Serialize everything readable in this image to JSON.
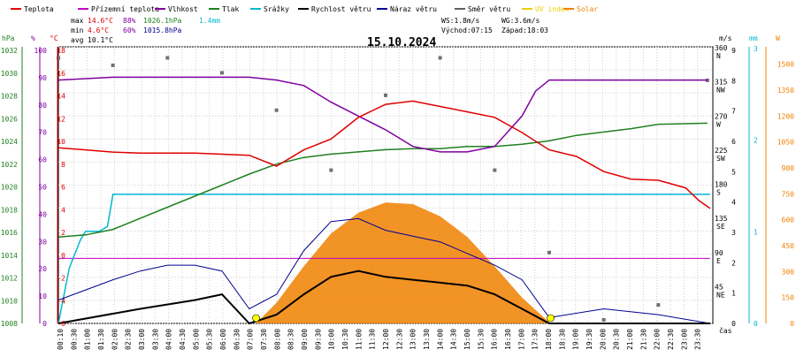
{
  "chart_data": {
    "type": "line",
    "title": "15.10.2024",
    "legend": [
      {
        "name": "Teplota",
        "color": "#e00000"
      },
      {
        "name": "Přízemní teplota",
        "color": "#c000c0"
      },
      {
        "name": "Vlhkost",
        "color": "#8000a0"
      },
      {
        "name": "Tlak",
        "color": "#208020"
      },
      {
        "name": "Srážky",
        "color": "#00b8d0"
      },
      {
        "name": "Rychlost větru",
        "color": "#000000"
      },
      {
        "name": "Náraz větru",
        "color": "#000090"
      },
      {
        "name": "Směr větru",
        "color": "#606060"
      },
      {
        "name": "UV index",
        "color": "#e8d000"
      },
      {
        "name": "Solar",
        "color": "#f08000"
      }
    ],
    "stats": {
      "max_label": "max",
      "max_temp": "14.6°C",
      "max_hum": "88%",
      "max_press": "1026.1hPa",
      "rain": "1.4mm",
      "min_label": "min",
      "min_temp": "4.6°C",
      "min_hum": "60%",
      "min_press": "1015.8hPa",
      "avg_label": "avg",
      "avg_temp": "10.1°C",
      "ws": "WS:1.8m/s",
      "wg": "WG:3.6m/s",
      "sunrise": "Východ:07:15",
      "sunset": "Západ:18:03"
    },
    "axes": {
      "hpa": {
        "unit": "hPa",
        "ticks": [
          "1032",
          "1030",
          "1028",
          "1026",
          "1024",
          "1022",
          "1020",
          "1018",
          "1016",
          "1014",
          "1012",
          "1010",
          "1008"
        ],
        "range": [
          1008,
          1033
        ]
      },
      "pct": {
        "unit": "%",
        "ticks": [
          "100",
          "90",
          "80",
          "70",
          "60",
          "50",
          "40",
          "30",
          "20",
          "10",
          "0"
        ],
        "range": [
          0,
          100
        ]
      },
      "temp": {
        "unit": "°C",
        "ticks": [
          "18",
          "16",
          "14",
          "12",
          "10",
          "8",
          "6",
          "4",
          "2",
          "0",
          "-2",
          "-4",
          "-6"
        ],
        "range": [
          -6,
          19.5
        ]
      },
      "ms": {
        "unit": "m/s",
        "ticks": [
          "9",
          "8",
          "7",
          "6",
          "5",
          "4",
          "3",
          "2",
          "1",
          "0"
        ],
        "range": [
          0,
          9.5
        ]
      },
      "dir": {
        "ticks": [
          "360",
          "315",
          "270",
          "225",
          "180",
          "135",
          "90",
          "45"
        ],
        "labels": [
          "N",
          "NW",
          "W",
          "SW",
          "S",
          "SE",
          "E",
          "NE"
        ]
      },
      "mm": {
        "unit": "mm",
        "ticks": [
          "3",
          "2",
          "1",
          "0"
        ],
        "range": [
          0,
          3
        ]
      },
      "w": {
        "unit": "W",
        "ticks": [
          "1500",
          "1350",
          "1200",
          "1050",
          "900",
          "750",
          "600",
          "450",
          "300",
          "150",
          "0"
        ],
        "range": [
          0,
          1600
        ]
      },
      "time": {
        "unit": "čas",
        "ticks": [
          "00:10",
          "00:30",
          "01:00",
          "01:30",
          "02:00",
          "02:30",
          "03:00",
          "03:30",
          "04:00",
          "04:30",
          "05:00",
          "05:30",
          "06:00",
          "06:30",
          "07:00",
          "07:30",
          "08:00",
          "08:30",
          "09:00",
          "09:30",
          "10:00",
          "10:30",
          "11:00",
          "11:30",
          "12:00",
          "12:30",
          "13:00",
          "13:30",
          "14:00",
          "14:30",
          "15:00",
          "15:30",
          "16:00",
          "16:30",
          "17:00",
          "17:30",
          "18:00",
          "18:30",
          "19:00",
          "19:30",
          "20:00",
          "20:30",
          "21:00",
          "21:30",
          "22:00",
          "22:30",
          "23:00",
          "23:30"
        ]
      }
    },
    "series": [
      {
        "name": "Teplota",
        "unit": "°C",
        "points": [
          [
            0,
            10.2
          ],
          [
            1,
            10.0
          ],
          [
            2,
            9.8
          ],
          [
            3,
            9.7
          ],
          [
            4,
            9.7
          ],
          [
            5,
            9.7
          ],
          [
            6,
            9.6
          ],
          [
            7,
            9.5
          ],
          [
            8,
            8.5
          ],
          [
            9,
            10
          ],
          [
            10,
            11
          ],
          [
            11,
            13
          ],
          [
            12,
            14.2
          ],
          [
            13,
            14.5
          ],
          [
            14,
            14
          ],
          [
            15,
            13.5
          ],
          [
            16,
            13
          ],
          [
            17,
            11.6
          ],
          [
            18,
            10
          ],
          [
            19,
            9.4
          ],
          [
            20,
            8
          ],
          [
            21,
            7.3
          ],
          [
            22,
            7.2
          ],
          [
            23,
            6.5
          ],
          [
            23.5,
            5.3
          ],
          [
            23.9,
            4.6
          ]
        ]
      },
      {
        "name": "Přízemní teplota",
        "unit": "°C",
        "points": [
          [
            0,
            0
          ],
          [
            23.9,
            0
          ]
        ]
      },
      {
        "name": "Vlhkost",
        "unit": "%",
        "points": [
          [
            0,
            88
          ],
          [
            2,
            89
          ],
          [
            4,
            89
          ],
          [
            6,
            89
          ],
          [
            7,
            89
          ],
          [
            8,
            88
          ],
          [
            9,
            86
          ],
          [
            10,
            80
          ],
          [
            11,
            75
          ],
          [
            12,
            70
          ],
          [
            13,
            64
          ],
          [
            14,
            62
          ],
          [
            15,
            62
          ],
          [
            16,
            64
          ],
          [
            17,
            75
          ],
          [
            17.5,
            84
          ],
          [
            18,
            88
          ],
          [
            20,
            88
          ],
          [
            22,
            88
          ],
          [
            23.8,
            88
          ]
        ]
      },
      {
        "name": "Tlak",
        "unit": "hPa",
        "points": [
          [
            0,
            1015.8
          ],
          [
            1,
            1016
          ],
          [
            2,
            1016.5
          ],
          [
            3,
            1017.5
          ],
          [
            4,
            1018.5
          ],
          [
            5,
            1019.5
          ],
          [
            6,
            1020.5
          ],
          [
            7,
            1021.5
          ],
          [
            8,
            1022.4
          ],
          [
            9,
            1023
          ],
          [
            10,
            1023.3
          ],
          [
            11,
            1023.5
          ],
          [
            12,
            1023.7
          ],
          [
            13,
            1023.8
          ],
          [
            14,
            1023.8
          ],
          [
            15,
            1024
          ],
          [
            16,
            1024
          ],
          [
            17,
            1024.2
          ],
          [
            18,
            1024.5
          ],
          [
            19,
            1025
          ],
          [
            20,
            1025.3
          ],
          [
            21,
            1025.6
          ],
          [
            22,
            1026
          ],
          [
            23.8,
            1026.1
          ]
        ]
      },
      {
        "name": "Srážky",
        "unit": "mm",
        "points": [
          [
            0,
            0
          ],
          [
            0.4,
            0.6
          ],
          [
            0.8,
            0.9
          ],
          [
            1.0,
            1.0
          ],
          [
            1.5,
            1.0
          ],
          [
            1.8,
            1.05
          ],
          [
            2.0,
            1.4
          ],
          [
            2.3,
            1.4
          ],
          [
            23.9,
            1.4
          ]
        ]
      },
      {
        "name": "Rychlost větru",
        "unit": "m/s",
        "points": [
          [
            0,
            0
          ],
          [
            3,
            0.5
          ],
          [
            5,
            0.8
          ],
          [
            6,
            1
          ],
          [
            7,
            0
          ],
          [
            8,
            0.3
          ],
          [
            9,
            1
          ],
          [
            10,
            1.6
          ],
          [
            11,
            1.8
          ],
          [
            12,
            1.6
          ],
          [
            13,
            1.5
          ],
          [
            14,
            1.4
          ],
          [
            15,
            1.3
          ],
          [
            16,
            1
          ],
          [
            17,
            0.5
          ],
          [
            18,
            0
          ],
          [
            23.9,
            0
          ]
        ]
      },
      {
        "name": "Náraz větru",
        "unit": "m/s",
        "points": [
          [
            0,
            0.8
          ],
          [
            2,
            1.5
          ],
          [
            3,
            1.8
          ],
          [
            4,
            2
          ],
          [
            5,
            2
          ],
          [
            6,
            1.8
          ],
          [
            7,
            0.5
          ],
          [
            8,
            1
          ],
          [
            9,
            2.5
          ],
          [
            10,
            3.5
          ],
          [
            11,
            3.6
          ],
          [
            12,
            3.2
          ],
          [
            13,
            3
          ],
          [
            14,
            2.8
          ],
          [
            15,
            2.4
          ],
          [
            16,
            2
          ],
          [
            17,
            1.5
          ],
          [
            18,
            0.2
          ],
          [
            20,
            0.5
          ],
          [
            22,
            0.3
          ],
          [
            23.9,
            0
          ]
        ]
      },
      {
        "name": "Solar",
        "unit": "W",
        "points": [
          [
            7.25,
            0
          ],
          [
            8,
            120
          ],
          [
            9,
            330
          ],
          [
            10,
            520
          ],
          [
            11,
            640
          ],
          [
            12,
            700
          ],
          [
            13,
            690
          ],
          [
            14,
            620
          ],
          [
            15,
            500
          ],
          [
            16,
            330
          ],
          [
            17,
            150
          ],
          [
            18.05,
            0
          ]
        ]
      }
    ],
    "wind_direction_deg": {
      "hours": [
        0,
        2,
        4,
        6,
        8,
        10,
        12,
        14,
        16,
        18,
        20,
        22,
        23.8
      ],
      "values": [
        350,
        340,
        350,
        330,
        280,
        200,
        300,
        350,
        200,
        90,
        0,
        20,
        320
      ]
    }
  }
}
